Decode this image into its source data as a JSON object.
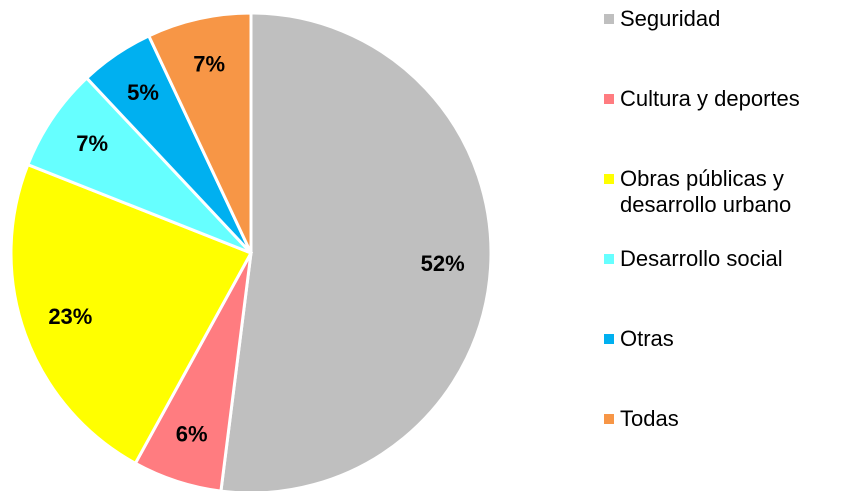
{
  "chart_data": {
    "type": "pie",
    "categories": [
      "Seguridad",
      "Cultura y deportes",
      "Obras públicas y\ndesarrollo urbano",
      "Desarrollo social",
      "Otras",
      "Todas"
    ],
    "values": [
      52,
      6,
      23,
      7,
      5,
      7
    ],
    "value_labels": [
      "52%",
      "6%",
      "23%",
      "7%",
      "5%",
      "7%"
    ],
    "colors": [
      "#bfbfbf",
      "#ff7c80",
      "#ffff00",
      "#66ffff",
      "#00b0f0",
      "#f79646"
    ],
    "legend": "right"
  }
}
